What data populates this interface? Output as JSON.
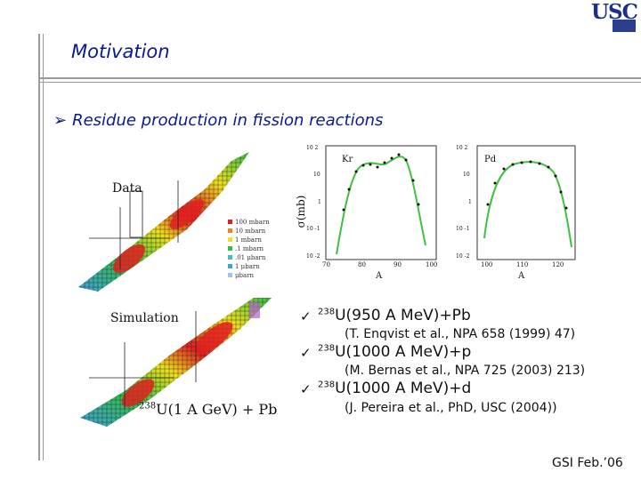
{
  "slide": {
    "title": "Motivation",
    "bullet": "Residue production in fission reactions",
    "logo": "USC",
    "footer": "GSI Feb.’06"
  },
  "nuclide_charts": {
    "data_label": "Data",
    "simulation_label": "Simulation",
    "sim_caption_mass": "238",
    "sim_caption_text": "U(1 A GeV) + Pb",
    "legend": [
      "100 mbarn",
      "10 mbarn",
      "1 mbarn",
      ".1 mbarn",
      ".01 μbarn",
      "1 μbarn",
      "μbarn"
    ],
    "colors": {
      "high": "#e02020",
      "mid": "#f0e020",
      "low": "#30c040",
      "lowest": "#40a0e0"
    }
  },
  "cross_section_plots": {
    "ylabel": "σ(mb)",
    "xlabel": "A",
    "left_panel": {
      "label": "Kr",
      "x_ticks": [
        "70",
        "80",
        "90",
        "100"
      ],
      "y_ticks": [
        "10 2",
        "10",
        "1",
        "10 -1",
        "10 -2"
      ]
    },
    "right_panel": {
      "label": "Pd",
      "x_ticks": [
        "100",
        "110",
        "120"
      ],
      "y_ticks": [
        "10 2",
        "10",
        "1",
        "10 -1",
        "10 -2"
      ]
    },
    "line_color": "#40c040"
  },
  "references": [
    {
      "mass": "238",
      "reaction": "U(950 A MeV)+Pb",
      "citation": "(T. Enqvist et al., NPA 658 (1999) 47)"
    },
    {
      "mass": "238",
      "reaction": "U(1000 A MeV)+p",
      "citation": "(M. Bernas et al., NPA 725 (2003) 213)"
    },
    {
      "mass": "238",
      "reaction": "U(1000 A MeV)+d",
      "citation": "(J. Pereira et al., PhD, USC (2004))"
    }
  ]
}
